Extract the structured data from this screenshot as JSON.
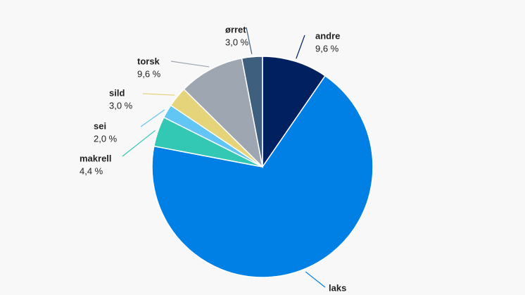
{
  "chart_data": {
    "type": "pie",
    "categories": [
      "andre",
      "laks",
      "makrell",
      "sei",
      "sild",
      "torsk",
      "ørret"
    ],
    "values": [
      9.6,
      68.4,
      4.4,
      2.0,
      3.0,
      9.6,
      3.0
    ],
    "value_labels": [
      "9,6 %",
      null,
      "4,4 %",
      "2,0 %",
      "3,0 %",
      "9,6 %",
      "3,0 %"
    ],
    "colors": [
      "#00205f",
      "#0080e5",
      "#33c8b4",
      "#62c6f4",
      "#e6d47a",
      "#9da6b1",
      "#3f5f7e"
    ]
  }
}
